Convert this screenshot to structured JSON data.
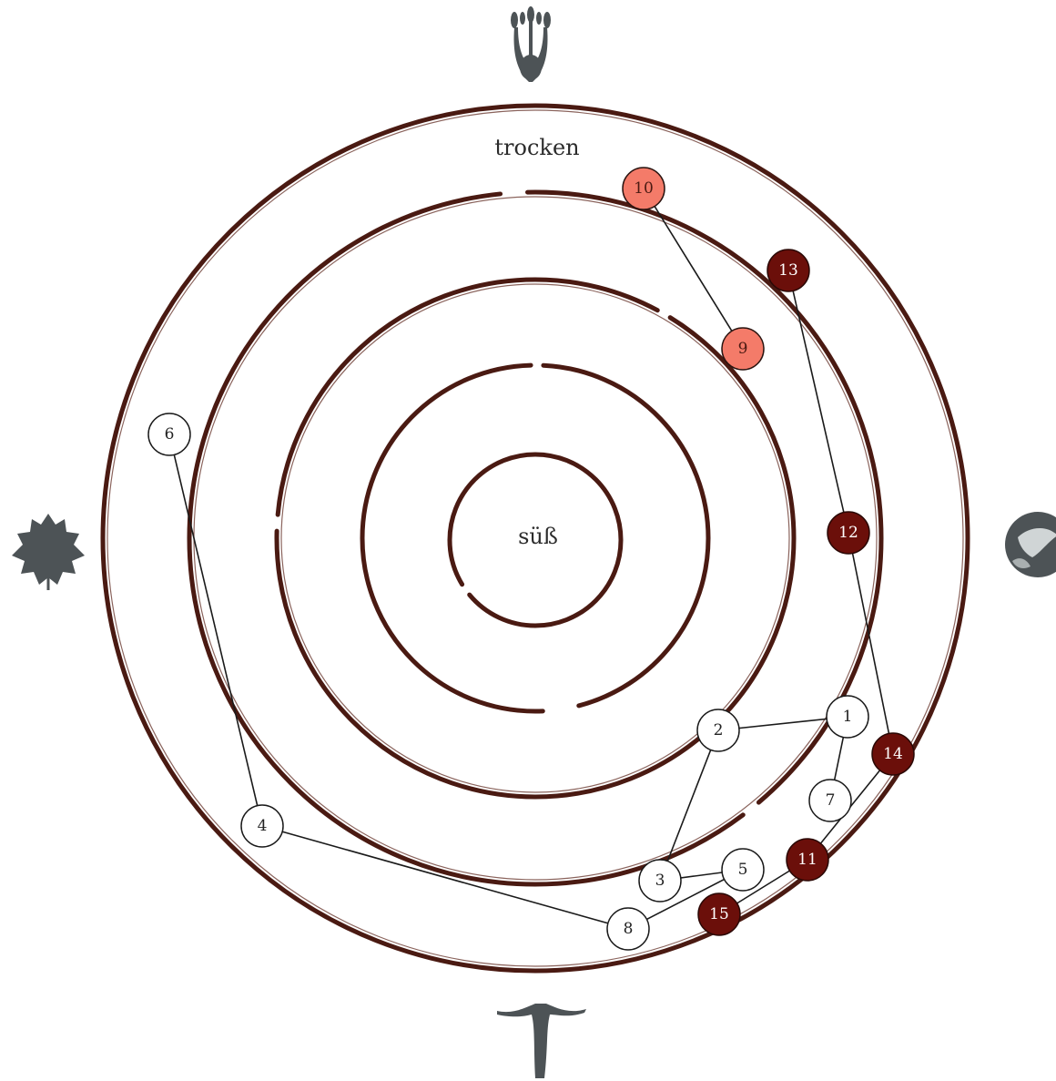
{
  "labels": {
    "top": "trocken",
    "center": "süß"
  },
  "icons": {
    "top": "flower-icon",
    "left": "grape-leaf-icon",
    "right": "grape-icon",
    "bottom": "vine-trunk-icon"
  },
  "colors": {
    "ring": "#4a1a12",
    "white_node_fill": "#ffffff",
    "white_node_text": "#222222",
    "salmon_node_fill": "#f47b69",
    "salmon_node_text": "#4a1a12",
    "dark_node_fill": "#6b0f0a",
    "dark_node_text": "#ffffff",
    "edge": "#1a1a1a",
    "icon": "#4d5356"
  },
  "nodes": [
    {
      "id": "1",
      "style": "white"
    },
    {
      "id": "2",
      "style": "white"
    },
    {
      "id": "3",
      "style": "white"
    },
    {
      "id": "4",
      "style": "white"
    },
    {
      "id": "5",
      "style": "white"
    },
    {
      "id": "6",
      "style": "white"
    },
    {
      "id": "7",
      "style": "white"
    },
    {
      "id": "8",
      "style": "white"
    },
    {
      "id": "9",
      "style": "salmon"
    },
    {
      "id": "10",
      "style": "salmon"
    },
    {
      "id": "11",
      "style": "dark"
    },
    {
      "id": "12",
      "style": "dark"
    },
    {
      "id": "13",
      "style": "dark"
    },
    {
      "id": "14",
      "style": "dark"
    },
    {
      "id": "15",
      "style": "dark"
    }
  ],
  "edges": [
    [
      "6",
      "4"
    ],
    [
      "4",
      "8"
    ],
    [
      "8",
      "5"
    ],
    [
      "5",
      "3"
    ],
    [
      "3",
      "2"
    ],
    [
      "2",
      "1"
    ],
    [
      "1",
      "7"
    ],
    [
      "10",
      "9"
    ],
    [
      "13",
      "12"
    ],
    [
      "12",
      "14"
    ],
    [
      "14",
      "11"
    ],
    [
      "11",
      "15"
    ]
  ]
}
